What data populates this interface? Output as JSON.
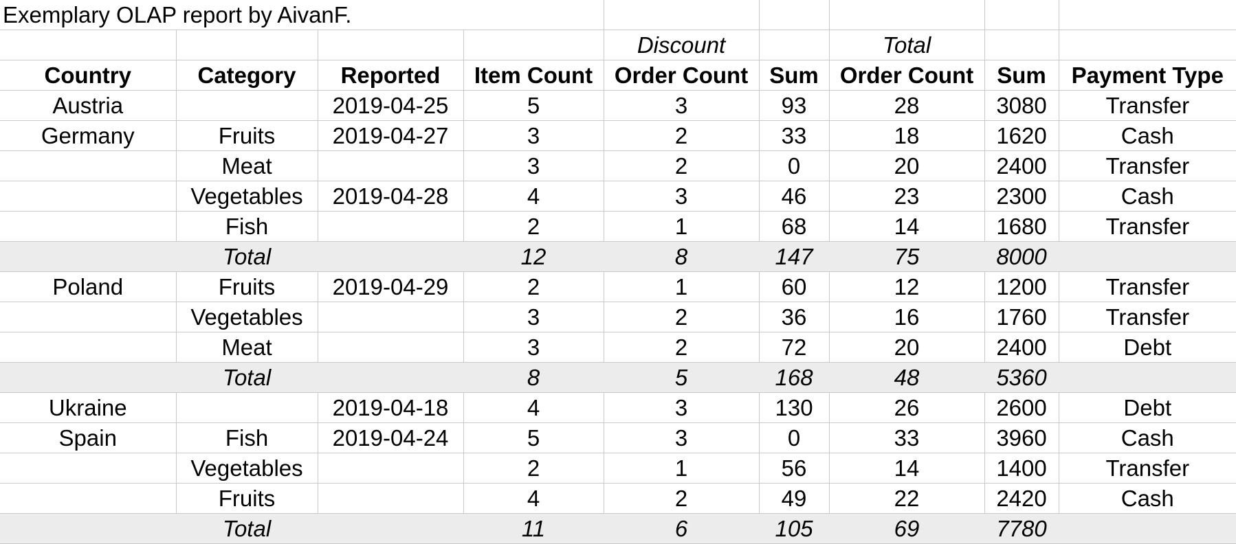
{
  "title": "Exemplary OLAP report by AivanF.",
  "group_headers": {
    "discount": "Discount",
    "total": "Total"
  },
  "headers": {
    "country": "Country",
    "category": "Category",
    "reported": "Reported",
    "item_count": "Item Count",
    "discount_order_count": "Order Count",
    "discount_sum": "Sum",
    "total_order_count": "Order Count",
    "total_sum": "Sum",
    "payment_type": "Payment Type"
  },
  "rows": [
    {
      "type": "data",
      "country": "Austria",
      "category": "",
      "reported": "2019-04-25",
      "item_count": "5",
      "discount_order_count": "3",
      "discount_sum": "93",
      "total_order_count": "28",
      "total_sum": "3080",
      "payment_type": "Transfer"
    },
    {
      "type": "data",
      "country": "Germany",
      "category": "Fruits",
      "reported": "2019-04-27",
      "item_count": "3",
      "discount_order_count": "2",
      "discount_sum": "33",
      "total_order_count": "18",
      "total_sum": "1620",
      "payment_type": "Cash"
    },
    {
      "type": "data",
      "country": "",
      "category": "Meat",
      "reported": "",
      "item_count": "3",
      "discount_order_count": "2",
      "discount_sum": "0",
      "total_order_count": "20",
      "total_sum": "2400",
      "payment_type": "Transfer"
    },
    {
      "type": "data",
      "country": "",
      "category": "Vegetables",
      "reported": "2019-04-28",
      "item_count": "4",
      "discount_order_count": "3",
      "discount_sum": "46",
      "total_order_count": "23",
      "total_sum": "2300",
      "payment_type": "Cash"
    },
    {
      "type": "data",
      "country": "",
      "category": "Fish",
      "reported": "",
      "item_count": "2",
      "discount_order_count": "1",
      "discount_sum": "68",
      "total_order_count": "14",
      "total_sum": "1680",
      "payment_type": "Transfer"
    },
    {
      "type": "total",
      "country": "",
      "category": "Total",
      "reported": "",
      "item_count": "12",
      "discount_order_count": "8",
      "discount_sum": "147",
      "total_order_count": "75",
      "total_sum": "8000",
      "payment_type": ""
    },
    {
      "type": "data",
      "country": "Poland",
      "category": "Fruits",
      "reported": "2019-04-29",
      "item_count": "2",
      "discount_order_count": "1",
      "discount_sum": "60",
      "total_order_count": "12",
      "total_sum": "1200",
      "payment_type": "Transfer"
    },
    {
      "type": "data",
      "country": "",
      "category": "Vegetables",
      "reported": "",
      "item_count": "3",
      "discount_order_count": "2",
      "discount_sum": "36",
      "total_order_count": "16",
      "total_sum": "1760",
      "payment_type": "Transfer"
    },
    {
      "type": "data",
      "country": "",
      "category": "Meat",
      "reported": "",
      "item_count": "3",
      "discount_order_count": "2",
      "discount_sum": "72",
      "total_order_count": "20",
      "total_sum": "2400",
      "payment_type": "Debt"
    },
    {
      "type": "total",
      "country": "",
      "category": "Total",
      "reported": "",
      "item_count": "8",
      "discount_order_count": "5",
      "discount_sum": "168",
      "total_order_count": "48",
      "total_sum": "5360",
      "payment_type": ""
    },
    {
      "type": "data",
      "country": "Ukraine",
      "category": "",
      "reported": "2019-04-18",
      "item_count": "4",
      "discount_order_count": "3",
      "discount_sum": "130",
      "total_order_count": "26",
      "total_sum": "2600",
      "payment_type": "Debt"
    },
    {
      "type": "data",
      "country": "Spain",
      "category": "Fish",
      "reported": "2019-04-24",
      "item_count": "5",
      "discount_order_count": "3",
      "discount_sum": "0",
      "total_order_count": "33",
      "total_sum": "3960",
      "payment_type": "Cash"
    },
    {
      "type": "data",
      "country": "",
      "category": "Vegetables",
      "reported": "",
      "item_count": "2",
      "discount_order_count": "1",
      "discount_sum": "56",
      "total_order_count": "14",
      "total_sum": "1400",
      "payment_type": "Transfer"
    },
    {
      "type": "data",
      "country": "",
      "category": "Fruits",
      "reported": "",
      "item_count": "4",
      "discount_order_count": "2",
      "discount_sum": "49",
      "total_order_count": "22",
      "total_sum": "2420",
      "payment_type": "Cash"
    },
    {
      "type": "total",
      "country": "",
      "category": "Total",
      "reported": "",
      "item_count": "11",
      "discount_order_count": "6",
      "discount_sum": "105",
      "total_order_count": "69",
      "total_sum": "7780",
      "payment_type": ""
    }
  ],
  "colors": {
    "grid": "#c9c9c9",
    "total_row_bg": "#ececec",
    "text": "#000000"
  }
}
